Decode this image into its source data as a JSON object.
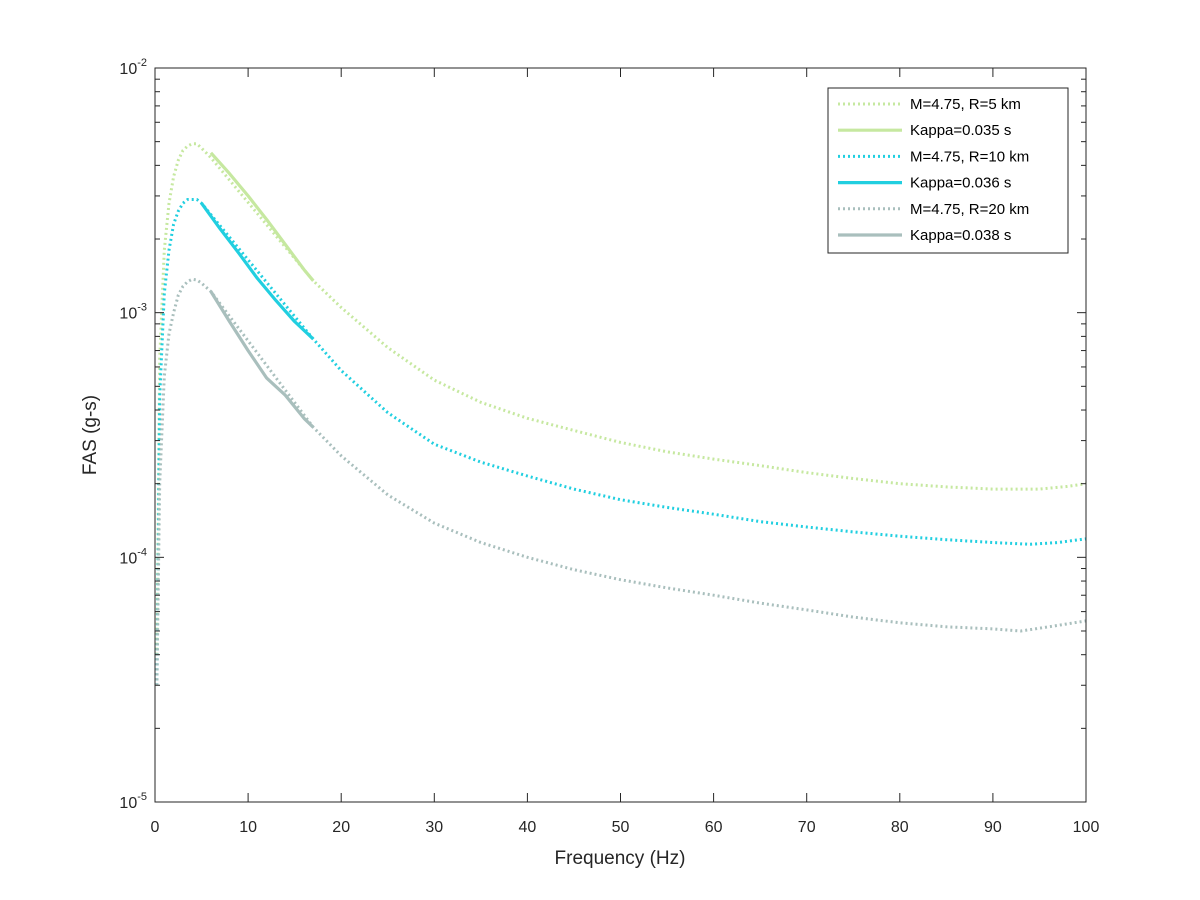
{
  "chart_data": {
    "type": "line",
    "title": "",
    "xlabel": "Frequency (Hz)",
    "ylabel": "FAS (g-s)",
    "xlim": [
      0,
      100
    ],
    "ylim": [
      1e-05,
      0.01
    ],
    "yscale": "log",
    "grid": false,
    "legend_position": "top-right",
    "x_ticks": [
      "0",
      "10",
      "20",
      "30",
      "40",
      "50",
      "60",
      "70",
      "80",
      "90",
      "100"
    ],
    "y_ticks": [
      {
        "base": "10",
        "exp": "-5"
      },
      {
        "base": "10",
        "exp": "-4"
      },
      {
        "base": "10",
        "exp": "-3"
      },
      {
        "base": "10",
        "exp": "-2"
      }
    ],
    "series": [
      {
        "name": "M=4.75, R=5 km",
        "color": "#c6e8a0",
        "style": "dotted",
        "points": [
          [
            0.2,
            4e-05
          ],
          [
            0.5,
            0.00065
          ],
          [
            1,
            0.0018
          ],
          [
            1.5,
            0.0028
          ],
          [
            2,
            0.0036
          ],
          [
            2.5,
            0.0042
          ],
          [
            3,
            0.0046
          ],
          [
            3.5,
            0.0048
          ],
          [
            4,
            0.0049
          ],
          [
            4.5,
            0.0049
          ],
          [
            5,
            0.0047
          ],
          [
            5.5,
            0.0045
          ],
          [
            6,
            0.0043
          ],
          [
            17,
            0.00135
          ],
          [
            20,
            0.00105
          ],
          [
            25,
            0.00072
          ],
          [
            30,
            0.00053
          ],
          [
            35,
            0.00043
          ],
          [
            40,
            0.00037
          ],
          [
            45,
            0.00033
          ],
          [
            50,
            0.000295
          ],
          [
            55,
            0.00027
          ],
          [
            60,
            0.000252
          ],
          [
            65,
            0.000237
          ],
          [
            70,
            0.000222
          ],
          [
            75,
            0.00021
          ],
          [
            80,
            0.0002
          ],
          [
            85,
            0.000194
          ],
          [
            90,
            0.00019
          ],
          [
            95,
            0.00019
          ],
          [
            98,
            0.000195
          ],
          [
            100,
            0.0002
          ]
        ]
      },
      {
        "name": "Kappa=0.035 s",
        "color": "#c6e8a0",
        "style": "solid",
        "points": [
          [
            6,
            0.0045
          ],
          [
            8,
            0.0037
          ],
          [
            10,
            0.003
          ],
          [
            12,
            0.0024
          ],
          [
            14,
            0.0019
          ],
          [
            16,
            0.0015
          ],
          [
            17,
            0.00135
          ]
        ]
      },
      {
        "name": "M=4.75, R=10 km",
        "color": "#21cfe0",
        "style": "dotted",
        "points": [
          [
            0.2,
            3e-05
          ],
          [
            0.5,
            0.00045
          ],
          [
            1,
            0.0012
          ],
          [
            1.5,
            0.0018
          ],
          [
            2,
            0.0023
          ],
          [
            2.5,
            0.0026
          ],
          [
            3,
            0.0028
          ],
          [
            3.5,
            0.0029
          ],
          [
            4,
            0.0029
          ],
          [
            4.5,
            0.0029
          ],
          [
            5,
            0.0028
          ],
          [
            17,
            0.00078
          ],
          [
            20,
            0.00058
          ],
          [
            25,
            0.00039
          ],
          [
            30,
            0.00029
          ],
          [
            35,
            0.000245
          ],
          [
            40,
            0.000215
          ],
          [
            45,
            0.00019
          ],
          [
            50,
            0.000172
          ],
          [
            55,
            0.00016
          ],
          [
            60,
            0.00015
          ],
          [
            65,
            0.00014
          ],
          [
            70,
            0.000133
          ],
          [
            75,
            0.000127
          ],
          [
            80,
            0.000122
          ],
          [
            85,
            0.000118
          ],
          [
            90,
            0.000115
          ],
          [
            94,
            0.000113
          ],
          [
            97,
            0.000115
          ],
          [
            100,
            0.000119
          ]
        ]
      },
      {
        "name": "Kappa=0.036 s",
        "color": "#21cfe0",
        "style": "solid",
        "points": [
          [
            5,
            0.0028
          ],
          [
            7,
            0.0022
          ],
          [
            9,
            0.00175
          ],
          [
            11,
            0.00138
          ],
          [
            13,
            0.00112
          ],
          [
            15,
            0.00092
          ],
          [
            17,
            0.00078
          ]
        ]
      },
      {
        "name": "M=4.75, R=20 km",
        "color": "#a9bfbd",
        "style": "dotted",
        "points": [
          [
            0.2,
            3e-05
          ],
          [
            0.5,
            0.0002
          ],
          [
            1,
            0.00055
          ],
          [
            1.5,
            0.00082
          ],
          [
            2,
            0.001
          ],
          [
            2.5,
            0.00118
          ],
          [
            3,
            0.00128
          ],
          [
            3.5,
            0.00134
          ],
          [
            4,
            0.00137
          ],
          [
            4.5,
            0.00136
          ],
          [
            5,
            0.00132
          ],
          [
            5.5,
            0.00127
          ],
          [
            6,
            0.00122
          ],
          [
            17,
            0.00034
          ],
          [
            20,
            0.00026
          ],
          [
            25,
            0.00018
          ],
          [
            30,
            0.000138
          ],
          [
            35,
            0.000115
          ],
          [
            40,
            0.0001
          ],
          [
            45,
            8.9e-05
          ],
          [
            50,
            8.1e-05
          ],
          [
            55,
            7.5e-05
          ],
          [
            60,
            7e-05
          ],
          [
            65,
            6.5e-05
          ],
          [
            70,
            6.1e-05
          ],
          [
            75,
            5.7e-05
          ],
          [
            80,
            5.4e-05
          ],
          [
            85,
            5.2e-05
          ],
          [
            90,
            5.1e-05
          ],
          [
            93,
            5e-05
          ],
          [
            96,
            5.2e-05
          ],
          [
            100,
            5.5e-05
          ]
        ]
      },
      {
        "name": "Kappa=0.038 s",
        "color": "#a9bfbd",
        "style": "solid",
        "points": [
          [
            6,
            0.00122
          ],
          [
            8,
            0.00092
          ],
          [
            10,
            0.0007
          ],
          [
            12,
            0.00054
          ],
          [
            14,
            0.00046
          ],
          [
            16,
            0.00037
          ],
          [
            17,
            0.00034
          ]
        ]
      }
    ]
  }
}
